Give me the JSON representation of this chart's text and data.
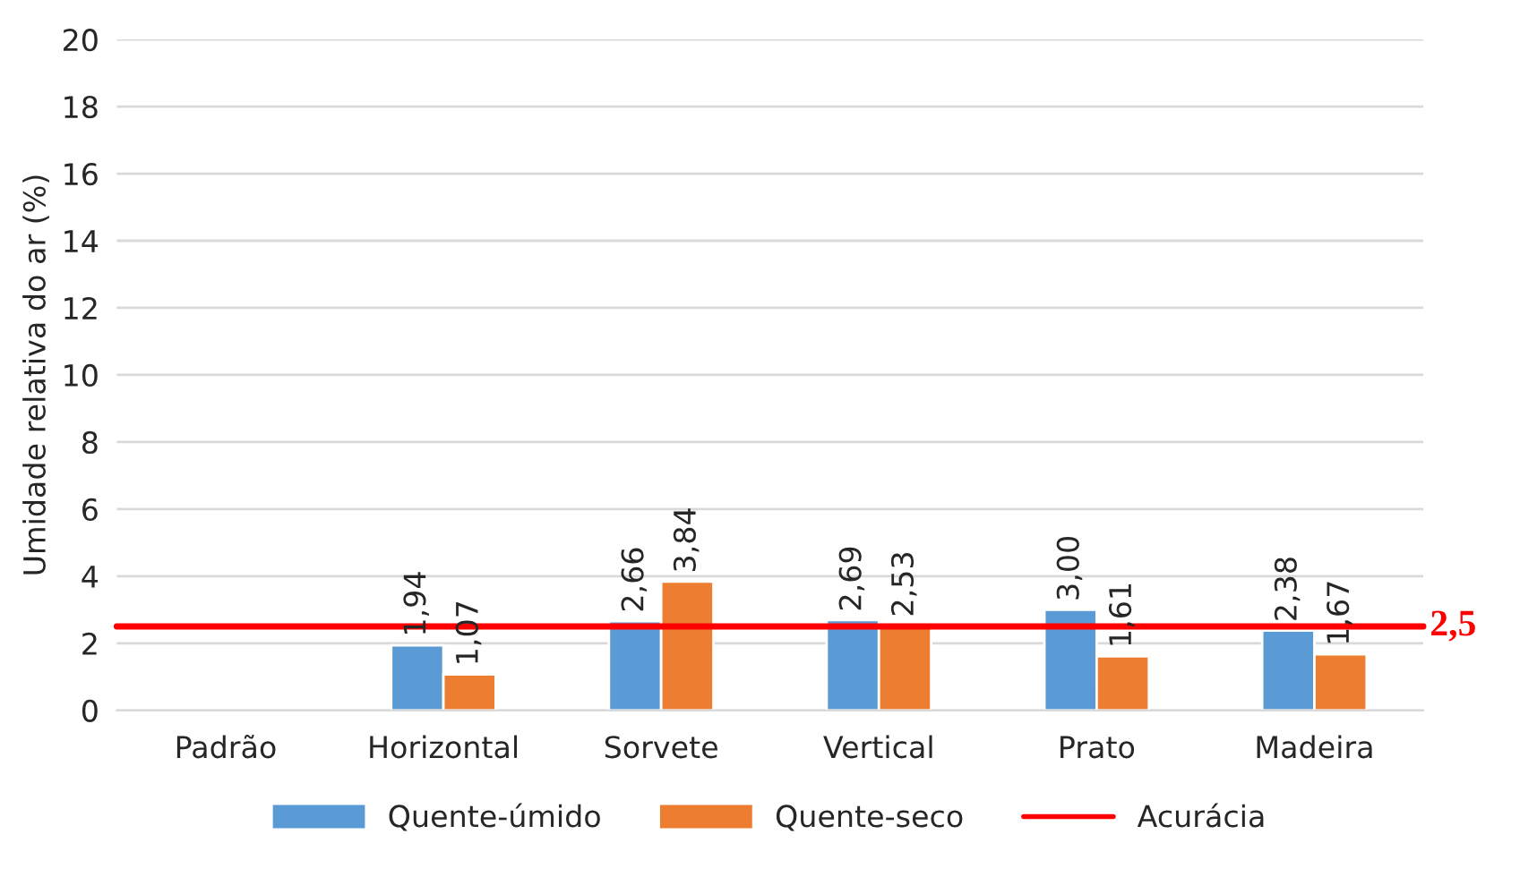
{
  "chart_data": {
    "type": "bar",
    "ylabel": "Umidade relativa do ar (%)",
    "categories": [
      "Padrão",
      "Horizontal",
      "Sorvete",
      "Vertical",
      "Prato",
      "Madeira"
    ],
    "series": [
      {
        "name": "Quente-úmido",
        "color": "#5b9bd5",
        "values": [
          null,
          1.94,
          2.66,
          2.69,
          3.0,
          2.38
        ],
        "value_labels": [
          null,
          "1,94",
          "2,66",
          "2,69",
          "3,00",
          "2,38"
        ]
      },
      {
        "name": "Quente-seco",
        "color": "#ed7d31",
        "values": [
          null,
          1.07,
          3.84,
          2.53,
          1.61,
          1.67
        ],
        "value_labels": [
          null,
          "1,07",
          "3,84",
          "2,53",
          "1,61",
          "1,67"
        ]
      }
    ],
    "ylim": [
      0,
      20
    ],
    "yticks": [
      0,
      2,
      4,
      6,
      8,
      10,
      12,
      14,
      16,
      18,
      20
    ],
    "grid": "y",
    "legend": "bottom",
    "ref_lines": [
      {
        "axis": "y",
        "value": 2.5,
        "label": "Acurácia",
        "color": "#ff0000"
      }
    ],
    "annotations": [
      "2,5"
    ]
  }
}
